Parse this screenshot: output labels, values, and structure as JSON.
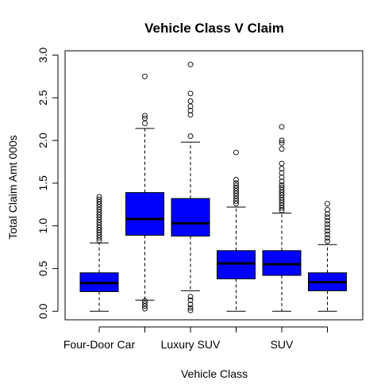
{
  "chart_data": {
    "type": "box",
    "title": "Vehicle Class V Claim",
    "xlabel": "Vehicle Class",
    "ylabel": "Total Claim Amt 000s",
    "ylim": [
      -0.1,
      3.05
    ],
    "y_ticks": [
      0.0,
      0.5,
      1.0,
      1.5,
      2.0,
      2.5,
      3.0
    ],
    "y_tick_labels": [
      "0.0",
      "0.5",
      "1.0",
      "1.5",
      "2.0",
      "2.5",
      "3.0"
    ],
    "categories": [
      "Four-Door Car",
      "",
      "Luxury SUV",
      "",
      "SUV",
      ""
    ],
    "box_color": "#0000ff",
    "boxes": [
      {
        "label": "Four-Door Car",
        "whisker_low": 0.0,
        "q1": 0.23,
        "median": 0.33,
        "q3": 0.45,
        "whisker_high": 0.8,
        "outliers": [
          0.83,
          0.86,
          0.89,
          0.92,
          0.95,
          0.98,
          1.01,
          1.04,
          1.07,
          1.1,
          1.13,
          1.16,
          1.19,
          1.22,
          1.25,
          1.28,
          1.31,
          1.34
        ]
      },
      {
        "label": "",
        "whisker_low": 0.13,
        "q1": 0.89,
        "median": 1.08,
        "q3": 1.39,
        "whisker_high": 2.14,
        "outliers": [
          0.03,
          0.06,
          0.09,
          0.12,
          2.2,
          2.26,
          2.29,
          2.75
        ]
      },
      {
        "label": "Luxury SUV",
        "whisker_low": 0.24,
        "q1": 0.88,
        "median": 1.03,
        "q3": 1.32,
        "whisker_high": 1.98,
        "outliers": [
          0.01,
          0.04,
          0.08,
          0.13,
          0.17,
          2.05,
          2.3,
          2.35,
          2.4,
          2.46,
          2.55,
          2.89
        ]
      },
      {
        "label": "",
        "whisker_low": 0.0,
        "q1": 0.38,
        "median": 0.56,
        "q3": 0.71,
        "whisker_high": 1.22,
        "outliers": [
          1.26,
          1.29,
          1.32,
          1.35,
          1.38,
          1.41,
          1.44,
          1.47,
          1.5,
          1.54,
          1.86
        ]
      },
      {
        "label": "SUV",
        "whisker_low": 0.0,
        "q1": 0.42,
        "median": 0.55,
        "q3": 0.71,
        "whisker_high": 1.15,
        "outliers": [
          1.18,
          1.21,
          1.24,
          1.27,
          1.3,
          1.33,
          1.36,
          1.39,
          1.42,
          1.45,
          1.48,
          1.52,
          1.57,
          1.62,
          1.67,
          1.73,
          1.9,
          1.97,
          2.0,
          2.16
        ]
      },
      {
        "label": "",
        "whisker_low": 0.0,
        "q1": 0.24,
        "median": 0.34,
        "q3": 0.45,
        "whisker_high": 0.78,
        "outliers": [
          0.82,
          0.86,
          0.9,
          0.94,
          0.98,
          1.02,
          1.06,
          1.1,
          1.14,
          1.19,
          1.26
        ]
      }
    ]
  }
}
